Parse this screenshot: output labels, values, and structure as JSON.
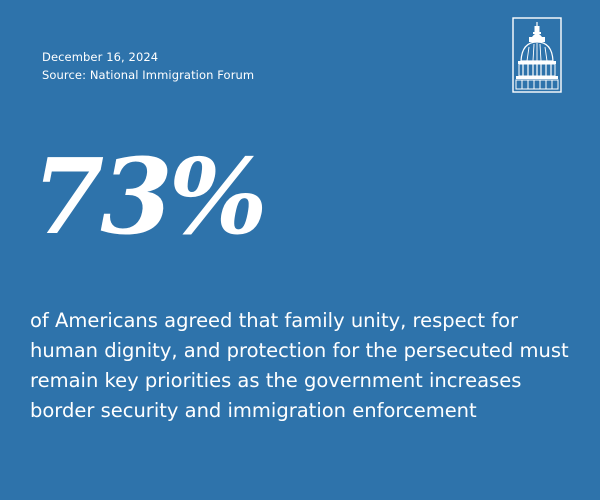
{
  "header": {
    "date": "December 16, 2024",
    "source": "Source: National Immigration Forum"
  },
  "logo": {
    "icon": "capitol-dome-icon",
    "color": "#ffffff"
  },
  "stat": {
    "value": "73%",
    "description": "of Americans agreed that family unity, respect for human dignity, and protection for the persecuted must remain key priorities as the government increases border security and immigration enforcement"
  },
  "colors": {
    "background": "#2e73ab",
    "text": "#ffffff"
  }
}
